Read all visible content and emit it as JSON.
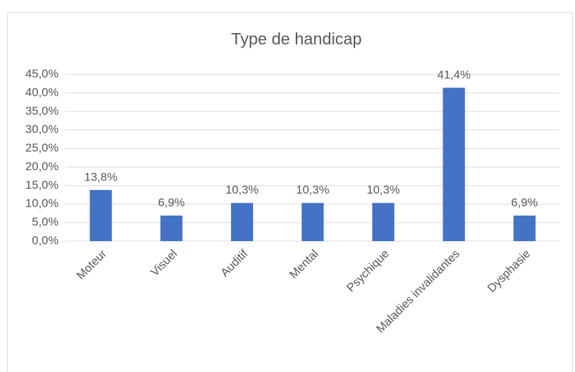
{
  "chart_data": {
    "type": "bar",
    "title": "Type de handicap",
    "categories": [
      "Moteur",
      "Visuel",
      "Auditif",
      "Mental",
      "Psychique",
      "Maladies invalidantes",
      "Dysphasie"
    ],
    "values": [
      13.8,
      6.9,
      10.3,
      10.3,
      10.3,
      41.4,
      6.9
    ],
    "value_labels": [
      "13,8%",
      "6,9%",
      "10,3%",
      "10,3%",
      "10,3%",
      "41,4%",
      "6,9%"
    ],
    "color": "#4472c4",
    "ylim": [
      0,
      45
    ],
    "yticks": [
      {
        "value": 0,
        "label": "0,0%"
      },
      {
        "value": 5,
        "label": "5,0%"
      },
      {
        "value": 10,
        "label": "10,0%"
      },
      {
        "value": 15,
        "label": "15,0%"
      },
      {
        "value": 20,
        "label": "20,0%"
      },
      {
        "value": 25,
        "label": "25,0%"
      },
      {
        "value": 30,
        "label": "30,0%"
      },
      {
        "value": 35,
        "label": "35,0%"
      },
      {
        "value": 40,
        "label": "40,0%"
      },
      {
        "value": 45,
        "label": "45,0%"
      }
    ],
    "grid": true
  }
}
